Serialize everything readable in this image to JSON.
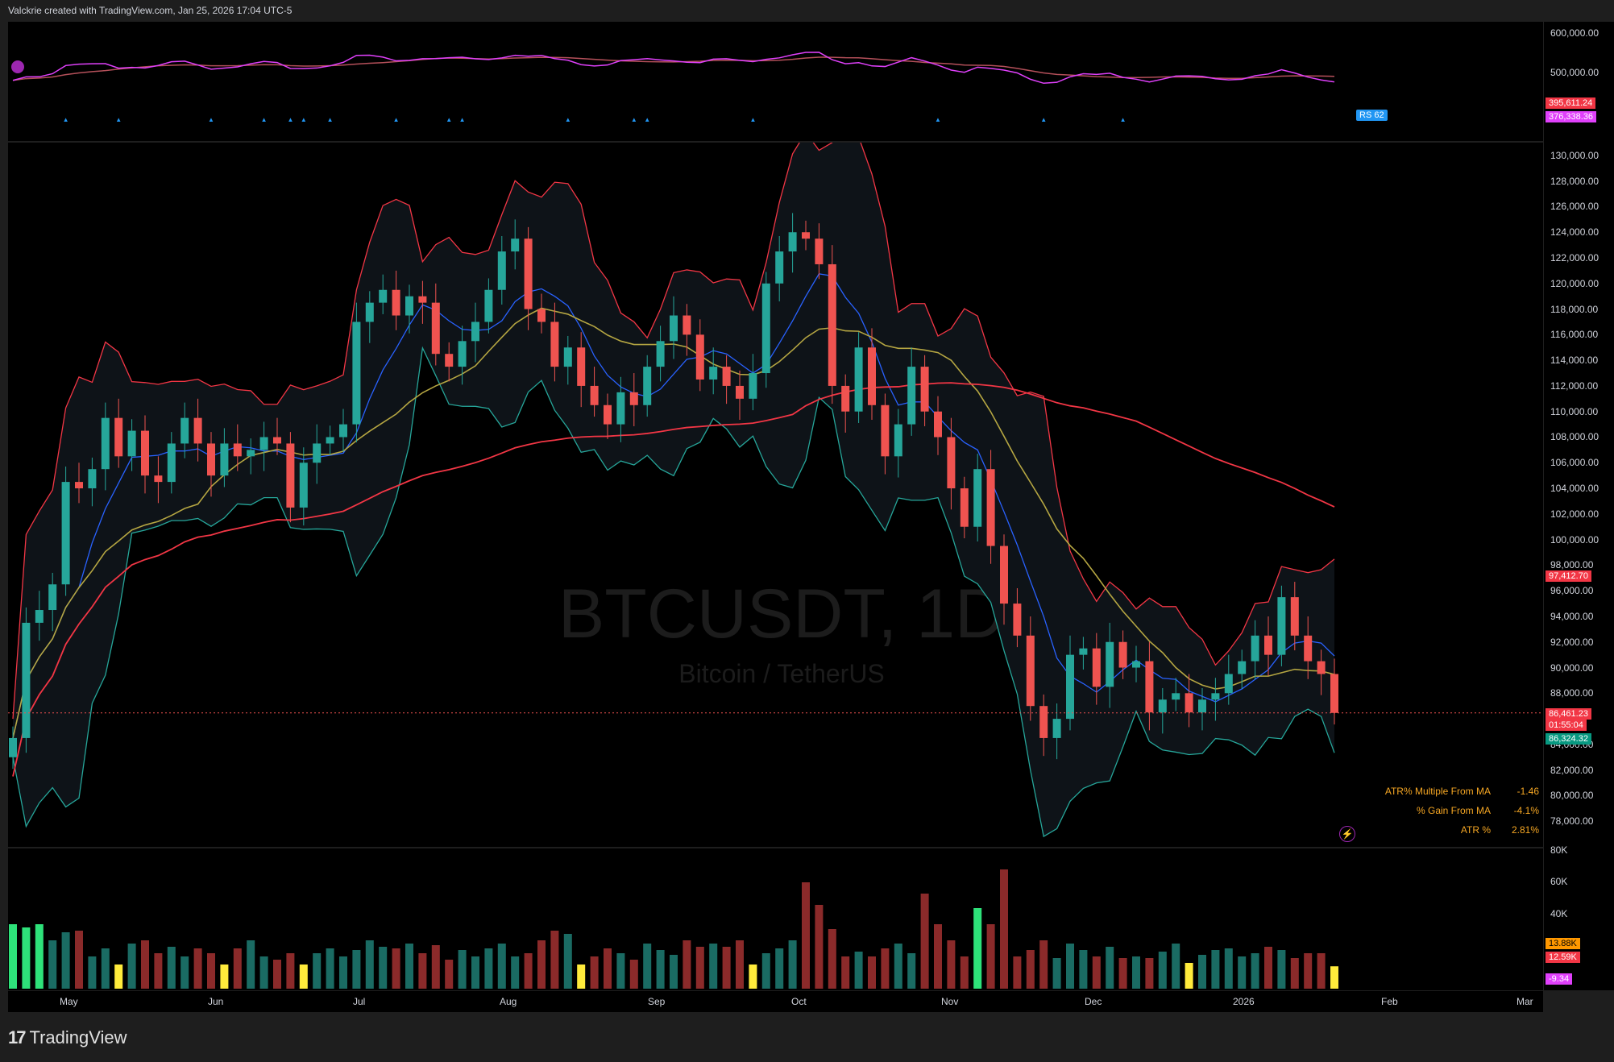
{
  "header": {
    "caption": "Valckrie created with TradingView.com, Jan 25, 2026 17:04 UTC-5"
  },
  "watermark": {
    "symbol": "BTCUSDT, 1D",
    "description": "Bitcoin / TetherUS"
  },
  "footer": {
    "brand": "TradingView"
  },
  "colors": {
    "up": "#26a69a",
    "down": "#ef5350",
    "bbUpper": "#f23645",
    "bbLower": "#26a69a",
    "ma20": "#2962ff",
    "ma50": "#b5a642",
    "ma200": "#f23645",
    "rsLine": "#e040fb",
    "rsFill": "#2196f3"
  },
  "rs_pane": {
    "ticks": [
      "600,000.00",
      "500,000.00"
    ],
    "tag_rs": "RS 62",
    "tag_val1": "395,611.24",
    "tag_val2": "376,338.36"
  },
  "main_axis": {
    "ticks": [
      "130,000.00",
      "128,000.00",
      "126,000.00",
      "124,000.00",
      "122,000.00",
      "120,000.00",
      "118,000.00",
      "116,000.00",
      "114,000.00",
      "112,000.00",
      "110,000.00",
      "108,000.00",
      "106,000.00",
      "104,000.00",
      "102,000.00",
      "100,000.00",
      "98,000.00",
      "96,000.00",
      "94,000.00",
      "92,000.00",
      "90,000.00",
      "88,000.00",
      "84,000.00",
      "82,000.00",
      "80,000.00",
      "78,000.00"
    ],
    "tag_bb_upper": "97,412.70",
    "tag_price": "86,461.23",
    "tag_countdown": "01:55:04",
    "tag_bb_lower": "86,324.32"
  },
  "volume_axis": {
    "ticks": [
      "80K",
      "60K",
      "40K"
    ],
    "tag_vol1": "13.88K",
    "tag_vol2": "12.59K",
    "tag_osc": "-9.34"
  },
  "time_axis": [
    "May",
    "Jun",
    "Jul",
    "Aug",
    "Sep",
    "Oct",
    "Nov",
    "Dec",
    "2026",
    "Feb",
    "Mar"
  ],
  "stats": [
    {
      "label": "ATR% Multiple From MA",
      "value": "-1.46"
    },
    {
      "label": "% Gain From MA",
      "value": "-4.1%"
    },
    {
      "label": "ATR %",
      "value": "2.81%"
    }
  ],
  "chart_data": {
    "type": "candlestick",
    "symbol": "BTCUSDT",
    "interval": "1D",
    "ylim": [
      76000,
      131000
    ],
    "dates": [
      "May",
      "Jun",
      "Jul",
      "Aug",
      "Sep",
      "Oct",
      "Nov",
      "Dec",
      "2026",
      "Feb",
      "Mar"
    ],
    "close": [
      84500,
      93500,
      94500,
      96500,
      104500,
      104000,
      105500,
      109500,
      106500,
      108500,
      105000,
      104500,
      107500,
      109500,
      107500,
      105000,
      107500,
      106500,
      107000,
      108000,
      107500,
      102500,
      106000,
      107500,
      108000,
      109000,
      117000,
      118500,
      119500,
      117500,
      119000,
      118500,
      114500,
      113500,
      115500,
      117000,
      119500,
      122500,
      123500,
      118000,
      117000,
      113500,
      115000,
      112000,
      110500,
      109000,
      111500,
      110500,
      113500,
      115500,
      117500,
      116000,
      112500,
      113500,
      112000,
      111000,
      113000,
      120000,
      122500,
      124000,
      123500,
      121500,
      112000,
      110000,
      115000,
      110500,
      106500,
      109000,
      113500,
      110000,
      108000,
      104000,
      101000,
      105500,
      99500,
      95000,
      92500,
      87000,
      84500,
      86000,
      91000,
      91500,
      88500,
      92000,
      90000,
      90500,
      86500,
      87500,
      88000,
      86500,
      87500,
      88000,
      89500,
      90500,
      92500,
      91000,
      95500,
      92500,
      90500,
      89500,
      86461
    ],
    "volume": [
      40,
      38,
      40,
      30,
      35,
      36,
      20,
      25,
      15,
      28,
      30,
      22,
      26,
      20,
      25,
      22,
      15,
      25,
      30,
      20,
      18,
      22,
      15,
      22,
      25,
      20,
      24,
      30,
      26,
      25,
      28,
      22,
      27,
      18,
      24,
      20,
      25,
      28,
      20,
      22,
      30,
      36,
      34,
      15,
      20,
      25,
      22,
      18,
      28,
      24,
      21,
      30,
      26,
      28,
      26,
      30,
      15,
      22,
      25,
      30,
      66,
      52,
      37,
      20,
      23,
      20,
      25,
      28,
      22,
      59,
      40,
      30,
      20,
      50,
      40,
      74,
      20,
      24,
      30,
      19,
      28,
      24,
      20,
      26,
      19,
      20,
      19,
      23,
      28,
      16,
      21,
      24,
      25,
      20,
      22,
      26,
      24,
      19,
      22,
      22,
      13.88
    ],
    "series": [
      {
        "name": "BB upper"
      },
      {
        "name": "BB lower"
      },
      {
        "name": "MA 20"
      },
      {
        "name": "MA 50"
      },
      {
        "name": "MA 200"
      }
    ],
    "last_price": 86461.23,
    "bb_upper_last": 97412.7,
    "bb_lower_last": 86324.32
  }
}
